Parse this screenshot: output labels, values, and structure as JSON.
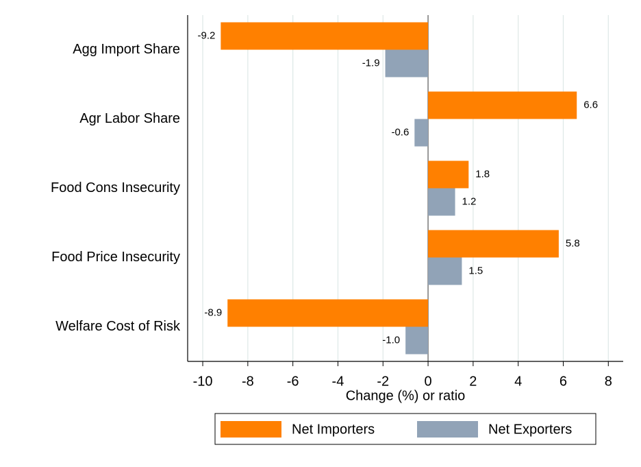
{
  "chart_data": {
    "type": "hbar",
    "categories": [
      "Agg Import Share",
      "Agr Labor Share",
      "Food Cons Insecurity",
      "Food Price Insecurity",
      "Welfare Cost of Risk"
    ],
    "series": [
      {
        "name": "Net Importers",
        "color": "#ff8000",
        "values": [
          -9.2,
          6.6,
          1.8,
          5.8,
          -8.9
        ],
        "value_labels": [
          "-9.2",
          "6.6",
          "1.8",
          "5.8",
          "-8.9"
        ]
      },
      {
        "name": "Net Exporters",
        "color": "#91a3b7",
        "values": [
          -1.9,
          -0.6,
          1.2,
          1.5,
          -1.0
        ],
        "value_labels": [
          "-1.9",
          "-0.6",
          "1.2",
          "1.5",
          "-1.0"
        ]
      }
    ],
    "x_label": "Change (%) or ratio",
    "xlim": [
      -10.67,
      8.66
    ],
    "xticks": [
      -10,
      -8,
      -6,
      -4,
      -2,
      0,
      2,
      4,
      6,
      8
    ],
    "grid": true,
    "legend": "bottom"
  }
}
